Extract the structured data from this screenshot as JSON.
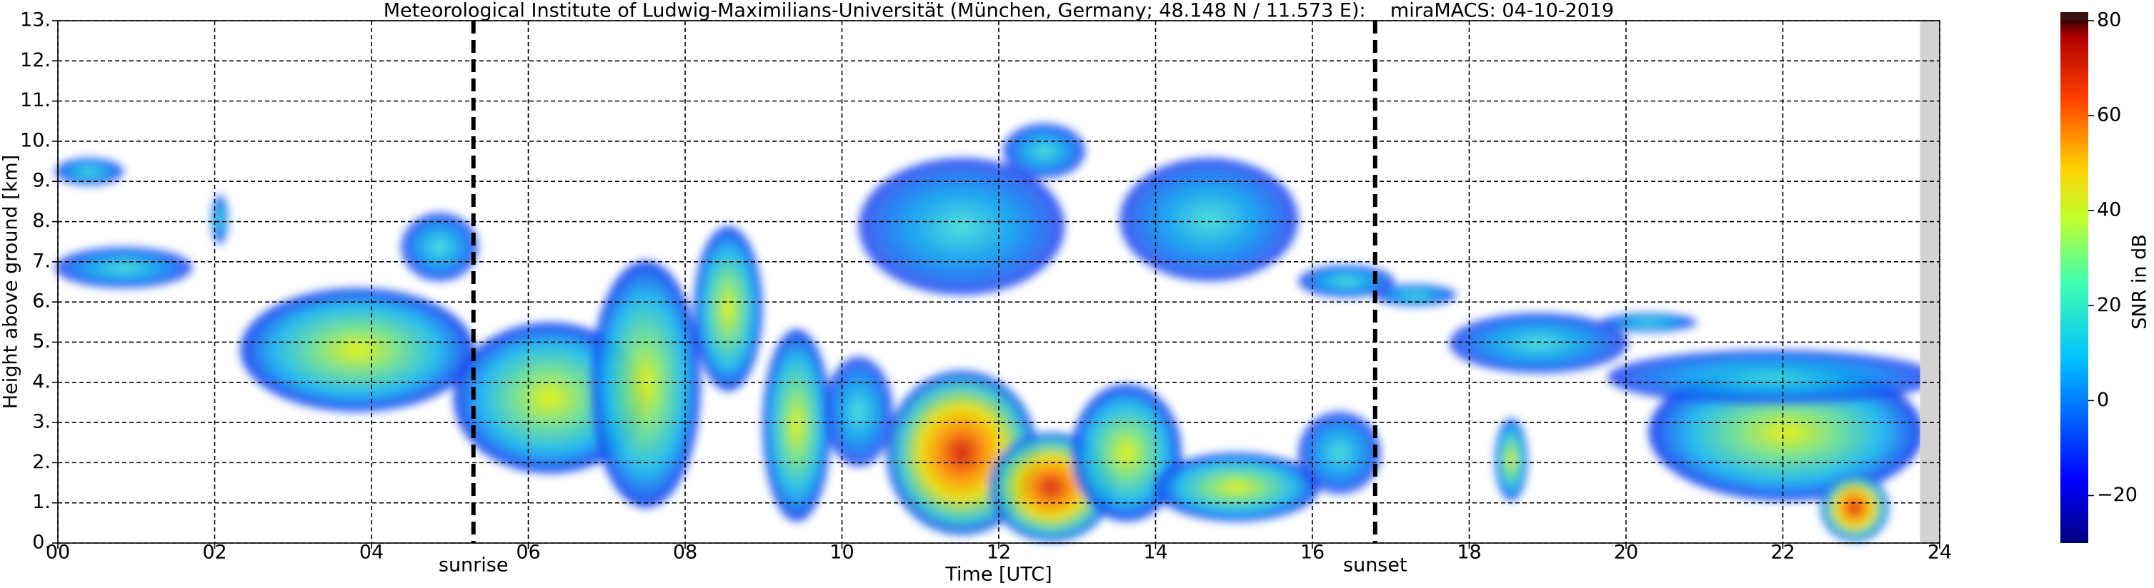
{
  "chart_data": {
    "type": "heatmap",
    "title": "Meteorological Institute of Ludwig-Maximilians-Universität (München, Germany; 48.148 N / 11.573 E):    miraMACS: 04-10-2019",
    "x_label": "Time [UTC]",
    "y_label": "Height above ground [km]",
    "xlim": [
      0,
      24
    ],
    "xticks": [
      {
        "value": 0,
        "label": "00"
      },
      {
        "value": 2,
        "label": "02"
      },
      {
        "value": 4,
        "label": "04"
      },
      {
        "value": 6,
        "label": "06"
      },
      {
        "value": 8,
        "label": "08"
      },
      10,
      12,
      14,
      16,
      18,
      20,
      22,
      24
    ],
    "ylim": [
      0,
      13
    ],
    "yticks": [
      {
        "value": 0,
        "label": "0."
      },
      {
        "value": 1,
        "label": "1."
      },
      {
        "value": 2,
        "label": "2."
      },
      {
        "value": 3,
        "label": "3."
      },
      {
        "value": 4,
        "label": "4."
      },
      {
        "value": 5,
        "label": "5."
      },
      {
        "value": 6,
        "label": "6."
      },
      {
        "value": 7,
        "label": "7."
      },
      {
        "value": 8,
        "label": "8."
      },
      {
        "value": 9,
        "label": "9."
      },
      {
        "value": 10,
        "label": "10."
      },
      {
        "value": 11,
        "label": "11."
      },
      {
        "value": 12,
        "label": "12."
      },
      {
        "value": 13,
        "label": "13."
      }
    ],
    "grid": true,
    "no_data_xrange": [
      23.75,
      24
    ],
    "annotations": [
      {
        "text": "sunrise",
        "x": 5.3
      },
      {
        "text": "sunset",
        "x": 16.8
      }
    ],
    "colorbar": {
      "label": "SNR in dB",
      "lim": [
        -30,
        80
      ],
      "ticks": [
        {
          "value": -20,
          "label": "−20"
        },
        0,
        20,
        40,
        60,
        80
      ]
    }
  }
}
